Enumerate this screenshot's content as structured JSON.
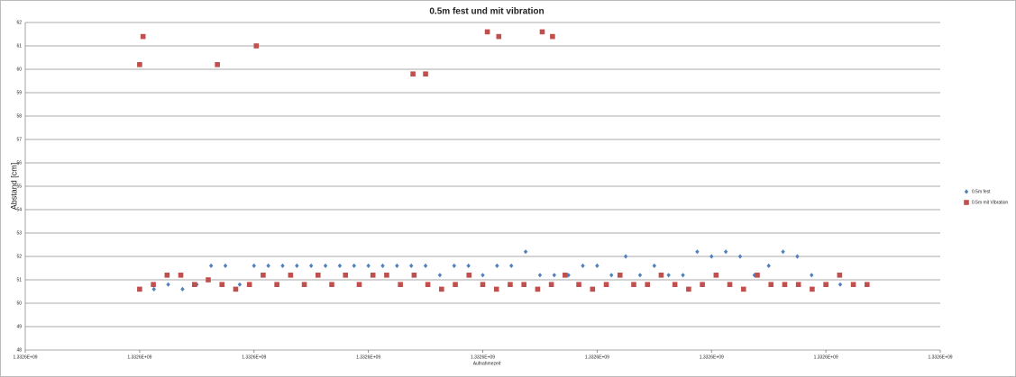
{
  "chart_data": {
    "type": "scatter",
    "title": "0.5m fest und mit vibration",
    "xlabel": "Aufnahmezeit",
    "ylabel": "Abstand [cm]",
    "xlim": [
      1332600000,
      1332600800
    ],
    "xticks": [
      {
        "value": 1332600000,
        "label": "1.3326E+09"
      },
      {
        "value": 1332600100,
        "label": "1.3326E+09"
      },
      {
        "value": 1332600200,
        "label": "1.3326E+09"
      },
      {
        "value": 1332600300,
        "label": "1.3326E+09"
      },
      {
        "value": 1332600400,
        "label": "1.3326E+09"
      },
      {
        "value": 1332600500,
        "label": "1.3326E+09"
      },
      {
        "value": 1332600600,
        "label": "1.3326E+09"
      },
      {
        "value": 1332600700,
        "label": "1.3326E+09"
      },
      {
        "value": 1332600800,
        "label": "1.3326E+09"
      }
    ],
    "ylim": [
      48,
      62
    ],
    "yticks": [
      48,
      49,
      50,
      51,
      52,
      53,
      54,
      55,
      56,
      57,
      58,
      59,
      60,
      61,
      62
    ],
    "grid": true,
    "legend": "right",
    "series": [
      {
        "name": "0.5m fest",
        "color": "#4f81bd",
        "marker": "diamond",
        "x": [
          1332600100,
          1332600112.5,
          1332600125,
          1332600137.5,
          1332600150,
          1332600162.5,
          1332600175,
          1332600187.5,
          1332600200,
          1332600212.5,
          1332600225,
          1332600237.5,
          1332600250,
          1332600262.5,
          1332600275,
          1332600287.5,
          1332600300,
          1332600312.5,
          1332600325,
          1332600337.5,
          1332600350,
          1332600362.5,
          1332600375,
          1332600387.5,
          1332600400,
          1332600412.5,
          1332600425,
          1332600437.5,
          1332600450,
          1332600462.5,
          1332600475,
          1332600487.5,
          1332600500,
          1332600512.5,
          1332600525,
          1332600537.5,
          1332600550,
          1332600562.5,
          1332600575,
          1332600587.5,
          1332600600,
          1332600612.5,
          1332600625,
          1332600637.5,
          1332600650,
          1332600662.5,
          1332600675,
          1332600687.5,
          1332600700,
          1332600712.5
        ],
        "values": [
          50.6,
          50.6,
          50.8,
          50.6,
          50.8,
          51.6,
          51.6,
          50.8,
          51.6,
          51.6,
          51.6,
          51.6,
          51.6,
          51.6,
          51.6,
          51.6,
          51.6,
          51.6,
          51.6,
          51.6,
          51.6,
          51.2,
          51.6,
          51.6,
          51.2,
          51.6,
          51.6,
          52.2,
          51.2,
          51.2,
          51.2,
          51.6,
          51.6,
          51.2,
          52.0,
          51.2,
          51.6,
          51.2,
          51.2,
          52.2,
          52.0,
          52.2,
          52.0,
          51.2,
          51.6,
          52.2,
          52.0,
          51.2,
          50.8,
          50.8
        ]
      },
      {
        "name": "0.5m mit Vibration",
        "color": "#c0504d",
        "marker": "square",
        "x": [
          1332600100,
          1332600112,
          1332600124,
          1332600136,
          1332600148,
          1332600160,
          1332600172,
          1332600184,
          1332600196,
          1332600208,
          1332600220,
          1332600232,
          1332600244,
          1332600256,
          1332600268,
          1332600280,
          1332600292,
          1332600304,
          1332600316,
          1332600328,
          1332600340,
          1332600352,
          1332600364,
          1332600376,
          1332600388,
          1332600400,
          1332600412,
          1332600424,
          1332600436,
          1332600448,
          1332600460,
          1332600472,
          1332600484,
          1332600496,
          1332600508,
          1332600520,
          1332600532,
          1332600544,
          1332600556,
          1332600568,
          1332600580,
          1332600592,
          1332600604,
          1332600616,
          1332600628,
          1332600640,
          1332600652,
          1332600664,
          1332600676,
          1332600688,
          1332600700,
          1332600712,
          1332600724,
          1332600736,
          1332600100,
          1332600103,
          1332600168,
          1332600202,
          1332600339,
          1332600350,
          1332600404,
          1332600414,
          1332600452,
          1332600461
        ],
        "values": [
          50.6,
          50.8,
          51.2,
          51.2,
          50.8,
          51.0,
          50.8,
          50.6,
          50.8,
          51.2,
          50.8,
          51.2,
          50.8,
          51.2,
          50.8,
          51.2,
          50.8,
          51.2,
          51.2,
          50.8,
          51.2,
          50.8,
          50.6,
          50.8,
          51.2,
          50.8,
          50.6,
          50.8,
          50.8,
          50.6,
          50.8,
          51.2,
          50.8,
          50.6,
          50.8,
          51.2,
          50.8,
          50.8,
          51.2,
          50.8,
          50.6,
          50.8,
          51.2,
          50.8,
          50.6,
          51.2,
          50.8,
          50.8,
          50.8,
          50.6,
          50.8,
          51.2,
          50.8,
          50.8,
          60.2,
          61.4,
          60.2,
          61.0,
          59.8,
          59.8,
          61.6,
          61.4,
          61.6,
          61.4
        ]
      }
    ]
  }
}
